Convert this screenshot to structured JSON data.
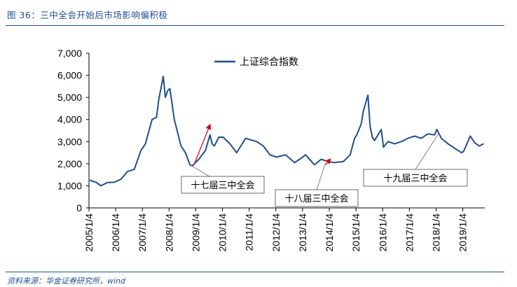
{
  "figure_title": "图 36：三中全会开始后市场影响偏积极",
  "source_note": "资料来源：华金证券研究所，wind",
  "colors": {
    "line": "#1f4e8c",
    "annotation_arrow": "#d0021b",
    "rule": "#1f4e8c",
    "text": "#1f4e8c"
  },
  "chart_data": {
    "type": "line",
    "title": "",
    "xlabel": "",
    "ylabel": "",
    "legend": {
      "entries": [
        "上证综合指数"
      ],
      "placement": "top-center"
    },
    "grid": false,
    "xlim": [
      "2005-01-04",
      "2019-10-31"
    ],
    "ylim": [
      0,
      7000
    ],
    "yticks": [
      0,
      1000,
      2000,
      3000,
      4000,
      5000,
      6000,
      7000
    ],
    "ytick_labels": [
      "0",
      "1,000",
      "2,000",
      "3,000",
      "4,000",
      "5,000",
      "6,000",
      "7,000"
    ],
    "xtick_labels": [
      "2005/1/4",
      "2006/1/4",
      "2007/1/4",
      "2008/1/4",
      "2009/1/4",
      "2010/1/4",
      "2011/1/4",
      "2012/1/4",
      "2013/1/4",
      "2014/1/4",
      "2015/1/4",
      "2016/1/4",
      "2017/1/4",
      "2018/1/4",
      "2019/1/4"
    ],
    "series": [
      {
        "name": "上证综合指数",
        "x": [
          "2005-01",
          "2005-04",
          "2005-06",
          "2005-09",
          "2005-12",
          "2006-03",
          "2006-06",
          "2006-09",
          "2006-12",
          "2007-02",
          "2007-05",
          "2007-07",
          "2007-08",
          "2007-10",
          "2007-11",
          "2007-12",
          "2008-01",
          "2008-03",
          "2008-04",
          "2008-06",
          "2008-08",
          "2008-10",
          "2008-11",
          "2008-12",
          "2009-02",
          "2009-05",
          "2009-07",
          "2009-08",
          "2009-09",
          "2009-11",
          "2010-01",
          "2010-04",
          "2010-07",
          "2010-11",
          "2011-04",
          "2011-07",
          "2011-10",
          "2012-01",
          "2012-05",
          "2012-09",
          "2012-12",
          "2013-02",
          "2013-06",
          "2013-09",
          "2013-12",
          "2014-03",
          "2014-07",
          "2014-10",
          "2014-12",
          "2015-01",
          "2015-03",
          "2015-04",
          "2015-06",
          "2015-07",
          "2015-08",
          "2015-09",
          "2015-12",
          "2016-01",
          "2016-03",
          "2016-06",
          "2016-09",
          "2016-12",
          "2017-03",
          "2017-06",
          "2017-09",
          "2017-12",
          "2018-01",
          "2018-03",
          "2018-06",
          "2018-09",
          "2018-12",
          "2019-01",
          "2019-04",
          "2019-06",
          "2019-08",
          "2019-10"
        ],
        "values": [
          1250,
          1150,
          1000,
          1150,
          1160,
          1300,
          1650,
          1750,
          2600,
          2900,
          4000,
          4100,
          4900,
          5950,
          5000,
          5300,
          5400,
          4000,
          3600,
          2800,
          2500,
          1950,
          1900,
          2000,
          2200,
          2600,
          3300,
          2900,
          2800,
          3200,
          3200,
          2900,
          2500,
          3150,
          3000,
          2800,
          2400,
          2300,
          2400,
          2050,
          2250,
          2400,
          1950,
          2200,
          2100,
          2050,
          2100,
          2400,
          3150,
          3300,
          3800,
          4400,
          5100,
          3700,
          3200,
          3050,
          3550,
          2750,
          3000,
          2900,
          3000,
          3150,
          3250,
          3150,
          3350,
          3300,
          3550,
          3150,
          2900,
          2700,
          2500,
          2550,
          3250,
          2950,
          2800,
          2900
        ]
      }
    ],
    "annotations": [
      {
        "text": "十七届三中全会",
        "date": "2008-10",
        "value": 1950
      },
      {
        "text": "十八届三中全会",
        "date": "2013-11",
        "value": 2050
      },
      {
        "text": "十九届三中全会",
        "date": "2018-02",
        "value": 3400
      }
    ],
    "trend_arrows": [
      {
        "from_date": "2008-12",
        "from_value": 2000,
        "to_date": "2009-07",
        "to_value": 3750
      },
      {
        "from_date": "2013-11",
        "from_value": 1950,
        "to_date": "2014-01",
        "to_value": 2200
      }
    ]
  }
}
